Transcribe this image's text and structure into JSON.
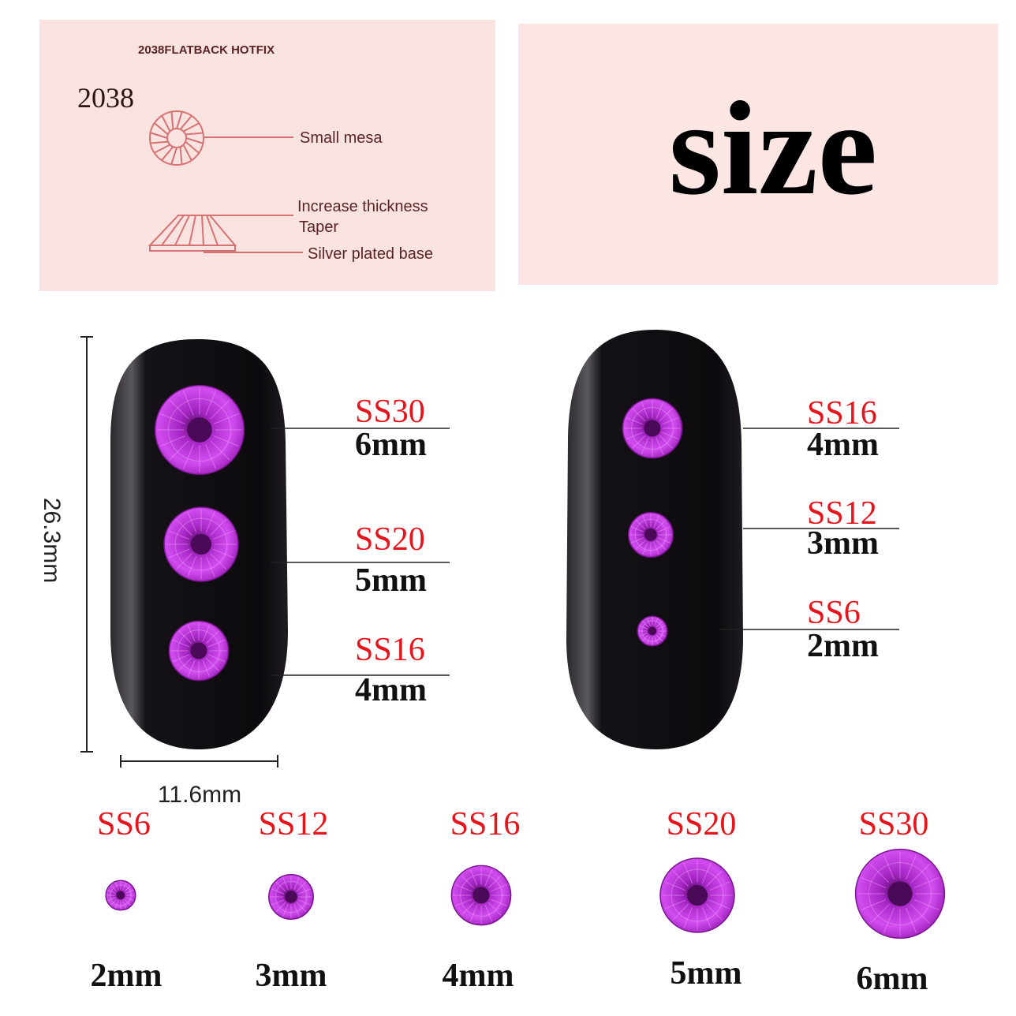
{
  "diagram_panel": {
    "heading": "2038FLATBACK HOTFIX",
    "model": "2038",
    "labels": [
      "Small mesa",
      "Increase thickness",
      "Taper",
      "Silver plated base"
    ],
    "line_color": "#d87272",
    "background": "#f9e3e1"
  },
  "title_panel": {
    "title": "size",
    "background": "#fbe6e4"
  },
  "dimensions": {
    "height": "26.3mm",
    "width": "11.6mm"
  },
  "gem_color": "#c32ee0",
  "nail_color": "#0c0a0d",
  "left_nail": [
    {
      "code": "SS30",
      "size": "6mm",
      "mm": 6
    },
    {
      "code": "SS20",
      "size": "5mm",
      "mm": 5
    },
    {
      "code": "SS16",
      "size": "4mm",
      "mm": 4
    }
  ],
  "right_nail": [
    {
      "code": "SS16",
      "size": "4mm",
      "mm": 4
    },
    {
      "code": "SS12",
      "size": "3mm",
      "mm": 3
    },
    {
      "code": "SS6",
      "size": "2mm",
      "mm": 2
    }
  ],
  "size_row": [
    {
      "code": "SS6",
      "size": "2mm",
      "mm": 2
    },
    {
      "code": "SS12",
      "size": "3mm",
      "mm": 3
    },
    {
      "code": "SS16",
      "size": "4mm",
      "mm": 4
    },
    {
      "code": "SS20",
      "size": "5mm",
      "mm": 5
    },
    {
      "code": "SS30",
      "size": "6mm",
      "mm": 6
    }
  ]
}
